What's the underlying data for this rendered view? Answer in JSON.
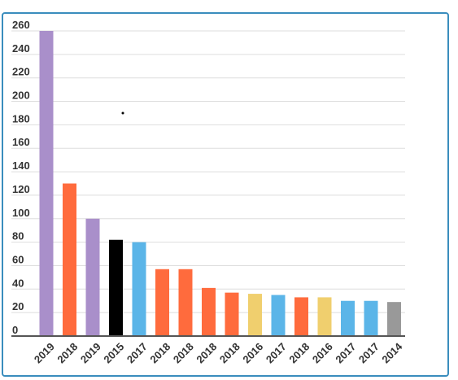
{
  "chart_data": {
    "type": "bar",
    "title": "",
    "xlabel": "",
    "ylabel": "",
    "ylim": [
      0,
      260
    ],
    "yticks": [
      0,
      20,
      40,
      60,
      80,
      100,
      120,
      140,
      160,
      180,
      200,
      220,
      240,
      260
    ],
    "grid": true,
    "legend": "none",
    "categories": [
      "2019",
      "2018",
      "2019",
      "2015",
      "2017",
      "2018",
      "2018",
      "2018",
      "2018",
      "2016",
      "2017",
      "2018",
      "2016",
      "2017",
      "2017",
      "2014"
    ],
    "values": [
      260,
      130,
      100,
      82,
      80,
      57,
      57,
      41,
      37,
      36,
      35,
      33,
      33,
      30,
      30,
      29
    ],
    "colors": [
      "#a98fca",
      "#ff6b3d",
      "#a98fca",
      "#000000",
      "#5bb5e8",
      "#ff6b3d",
      "#ff6b3d",
      "#ff6b3d",
      "#ff6b3d",
      "#f0cf6e",
      "#5bb5e8",
      "#ff6b3d",
      "#f0cf6e",
      "#5bb5e8",
      "#5bb5e8",
      "#999999"
    ]
  }
}
